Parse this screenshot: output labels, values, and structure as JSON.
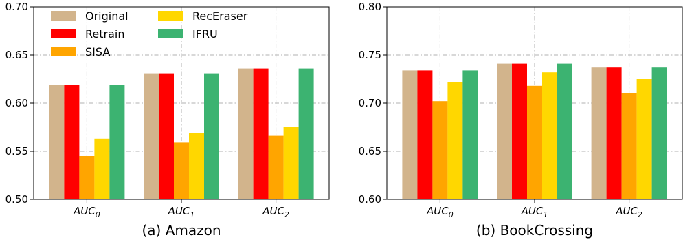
{
  "legend": {
    "placement": "top-left, inside panel (a)",
    "entries": [
      "Original",
      "Retrain",
      "SISA",
      "RecEraser",
      "IFRU"
    ]
  },
  "colors": {
    "Original": "#D2B48C",
    "Retrain": "#FF0000",
    "SISA": "#FFA500",
    "RecEraser": "#FFD700",
    "IFRU": "#3CB371"
  },
  "chart_data": [
    {
      "type": "bar",
      "caption": "(a) Amazon",
      "categories": [
        {
          "base": "AUC",
          "sub": "0"
        },
        {
          "base": "AUC",
          "sub": "1"
        },
        {
          "base": "AUC",
          "sub": "2"
        }
      ],
      "ylim": [
        0.5,
        0.7
      ],
      "yticks": [
        "0.50",
        "0.55",
        "0.60",
        "0.65",
        "0.70"
      ],
      "grid": true,
      "series": [
        {
          "name": "Original",
          "values": [
            0.619,
            0.631,
            0.636
          ]
        },
        {
          "name": "Retrain",
          "values": [
            0.619,
            0.631,
            0.636
          ]
        },
        {
          "name": "SISA",
          "values": [
            0.545,
            0.559,
            0.566
          ]
        },
        {
          "name": "RecEraser",
          "values": [
            0.563,
            0.569,
            0.575
          ]
        },
        {
          "name": "IFRU",
          "values": [
            0.619,
            0.631,
            0.636
          ]
        }
      ]
    },
    {
      "type": "bar",
      "caption": "(b) BookCrossing",
      "categories": [
        {
          "base": "AUC",
          "sub": "0"
        },
        {
          "base": "AUC",
          "sub": "1"
        },
        {
          "base": "AUC",
          "sub": "2"
        }
      ],
      "ylim": [
        0.6,
        0.8
      ],
      "yticks": [
        "0.60",
        "0.65",
        "0.70",
        "0.75",
        "0.80"
      ],
      "grid": true,
      "series": [
        {
          "name": "Original",
          "values": [
            0.734,
            0.741,
            0.737
          ]
        },
        {
          "name": "Retrain",
          "values": [
            0.734,
            0.741,
            0.737
          ]
        },
        {
          "name": "SISA",
          "values": [
            0.702,
            0.718,
            0.71
          ]
        },
        {
          "name": "RecEraser",
          "values": [
            0.722,
            0.732,
            0.725
          ]
        },
        {
          "name": "IFRU",
          "values": [
            0.734,
            0.741,
            0.737
          ]
        }
      ]
    }
  ]
}
